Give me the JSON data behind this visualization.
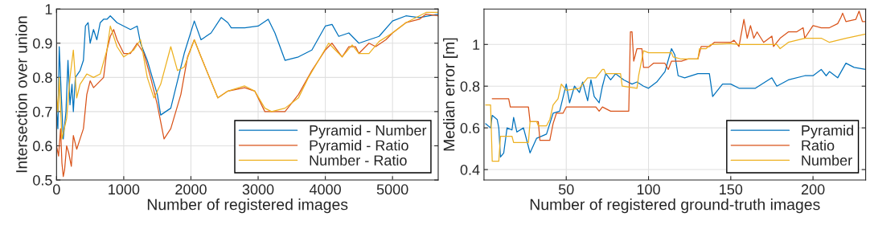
{
  "chart_data": [
    {
      "type": "line",
      "xlabel": "Number of registered images",
      "ylabel": "Intersection over union",
      "xlim": [
        0,
        5680
      ],
      "ylim": [
        0.5,
        1
      ],
      "xticks": [
        0,
        1000,
        2000,
        3000,
        4000,
        5000
      ],
      "yticks": [
        0.5,
        0.6,
        0.7,
        0.8,
        0.9,
        1
      ],
      "grid": true,
      "legend": "bottom right",
      "series": [
        {
          "name": "Pyramid - Number",
          "color": "#0072bd",
          "x": [
            0,
            20,
            40,
            70,
            100,
            140,
            170,
            200,
            230,
            250,
            280,
            350,
            400,
            430,
            470,
            500,
            550,
            600,
            650,
            700,
            750,
            800,
            850,
            900,
            1000,
            1100,
            1200,
            1250,
            1350,
            1500,
            1550,
            1700,
            1900,
            2050,
            2150,
            2300,
            2450,
            2550,
            2600,
            2800,
            3000,
            3150,
            3250,
            3400,
            3600,
            3800,
            4000,
            4100,
            4200,
            4350,
            4500,
            4650,
            4800,
            5000,
            5200,
            5400,
            5680
          ],
          "values": [
            0.7,
            0.65,
            0.89,
            0.75,
            0.62,
            0.7,
            0.85,
            0.72,
            0.78,
            0.7,
            0.8,
            0.82,
            0.85,
            0.95,
            0.96,
            0.9,
            0.94,
            0.91,
            0.96,
            0.97,
            0.97,
            0.98,
            0.97,
            0.96,
            0.95,
            0.94,
            0.95,
            0.9,
            0.85,
            0.75,
            0.69,
            0.71,
            0.87,
            0.965,
            0.91,
            0.93,
            0.975,
            0.96,
            0.945,
            0.945,
            0.95,
            0.97,
            0.93,
            0.85,
            0.86,
            0.88,
            0.95,
            0.955,
            0.92,
            0.93,
            0.9,
            0.91,
            0.92,
            0.965,
            0.98,
            0.975,
            0.985
          ]
        },
        {
          "name": "Pyramid - Ratio",
          "color": "#d95319",
          "x": [
            0,
            30,
            60,
            80,
            100,
            120,
            150,
            180,
            220,
            250,
            300,
            350,
            400,
            450,
            500,
            550,
            600,
            700,
            750,
            800,
            850,
            900,
            1000,
            1100,
            1200,
            1300,
            1400,
            1500,
            1600,
            1700,
            1850,
            1950,
            2050,
            2150,
            2400,
            2550,
            2800,
            2950,
            3100,
            3300,
            3400,
            3600,
            3800,
            4000,
            4100,
            4250,
            4350,
            4450,
            4500,
            4650,
            4750,
            4900,
            5000,
            5200,
            5400,
            5500,
            5680
          ],
          "values": [
            0.6,
            0.57,
            0.65,
            0.55,
            0.51,
            0.53,
            0.6,
            0.58,
            0.54,
            0.63,
            0.59,
            0.62,
            0.65,
            0.75,
            0.79,
            0.77,
            0.78,
            0.8,
            0.88,
            0.92,
            0.94,
            0.91,
            0.87,
            0.87,
            0.9,
            0.87,
            0.8,
            0.72,
            0.62,
            0.65,
            0.75,
            0.86,
            0.91,
            0.86,
            0.74,
            0.76,
            0.77,
            0.76,
            0.7,
            0.7,
            0.7,
            0.75,
            0.82,
            0.88,
            0.9,
            0.86,
            0.89,
            0.89,
            0.87,
            0.9,
            0.89,
            0.91,
            0.93,
            0.96,
            0.97,
            0.985,
            0.98
          ]
        },
        {
          "name": "Number - Ratio",
          "color": "#edb120",
          "x": [
            0,
            20,
            40,
            80,
            150,
            200,
            250,
            300,
            350,
            450,
            550,
            650,
            750,
            800,
            900,
            1000,
            1150,
            1250,
            1350,
            1450,
            1550,
            1700,
            1800,
            1900,
            2050,
            2150,
            2400,
            2550,
            2800,
            2950,
            3100,
            3200,
            3400,
            3600,
            3750,
            3900,
            4050,
            4250,
            4400,
            4500,
            4650,
            4800,
            5000,
            5200,
            5500,
            5680
          ],
          "values": [
            0.75,
            0.7,
            0.8,
            0.62,
            0.68,
            0.8,
            0.88,
            0.74,
            0.78,
            0.81,
            0.8,
            0.81,
            0.88,
            0.95,
            0.89,
            0.86,
            0.88,
            0.91,
            0.8,
            0.74,
            0.78,
            0.89,
            0.82,
            0.83,
            0.91,
            0.86,
            0.74,
            0.76,
            0.775,
            0.76,
            0.71,
            0.7,
            0.71,
            0.74,
            0.8,
            0.85,
            0.9,
            0.86,
            0.895,
            0.87,
            0.87,
            0.905,
            0.93,
            0.96,
            0.99,
            0.99
          ]
        }
      ]
    },
    {
      "type": "line",
      "xlabel": "Number of registered ground-truth images",
      "ylabel": "Median error [m]",
      "xlim": [
        0,
        232
      ],
      "ylim": [
        0.35,
        1.17
      ],
      "xticks": [
        50,
        100,
        150,
        200
      ],
      "yticks": [
        0.4,
        0.6,
        0.8,
        1
      ],
      "grid": true,
      "legend": "bottom right",
      "series": [
        {
          "name": "Pyramid",
          "color": "#0072bd",
          "x": [
            1,
            4,
            5,
            8,
            9,
            10,
            12,
            14,
            17,
            18,
            20,
            24,
            28,
            32,
            38,
            42,
            46,
            50,
            52,
            55,
            58,
            60,
            63,
            65,
            67,
            70,
            72,
            74,
            77,
            80,
            85,
            90,
            93,
            97,
            100,
            105,
            110,
            114,
            116,
            118,
            122,
            130,
            137,
            139,
            145,
            150,
            155,
            165,
            175,
            178,
            185,
            195,
            200,
            205,
            208,
            210,
            215,
            220,
            225,
            232
          ],
          "values": [
            0.62,
            0.6,
            0.66,
            0.64,
            0.6,
            0.46,
            0.48,
            0.6,
            0.59,
            0.65,
            0.58,
            0.6,
            0.48,
            0.55,
            0.57,
            0.67,
            0.68,
            0.81,
            0.72,
            0.8,
            0.77,
            0.82,
            0.73,
            0.83,
            0.75,
            0.72,
            0.8,
            0.86,
            0.83,
            0.86,
            0.83,
            0.81,
            0.82,
            0.8,
            0.79,
            0.82,
            0.87,
            0.98,
            0.95,
            0.85,
            0.84,
            0.86,
            0.86,
            0.75,
            0.81,
            0.81,
            0.79,
            0.79,
            0.84,
            0.8,
            0.83,
            0.85,
            0.85,
            0.88,
            0.85,
            0.87,
            0.84,
            0.91,
            0.89,
            0.88
          ]
        },
        {
          "name": "Ratio",
          "color": "#d95319",
          "x": [
            5,
            15,
            16,
            27,
            28,
            33,
            34,
            40,
            42,
            44,
            48,
            50,
            68,
            70,
            72,
            77,
            88,
            89,
            90,
            91,
            93,
            96,
            97,
            100,
            103,
            110,
            112,
            114,
            120,
            124,
            130,
            132,
            137,
            140,
            150,
            152,
            155,
            158,
            160,
            162,
            164,
            166,
            170,
            175,
            176,
            180,
            185,
            190,
            194,
            195,
            200,
            205,
            210,
            215,
            217,
            218,
            220,
            226,
            228,
            230,
            232
          ],
          "values": [
            0.74,
            0.74,
            0.7,
            0.7,
            0.63,
            0.63,
            0.54,
            0.54,
            0.62,
            0.67,
            0.67,
            0.7,
            0.7,
            0.68,
            0.7,
            0.68,
            0.68,
            1.06,
            1.06,
            0.92,
            0.98,
            0.98,
            0.89,
            0.89,
            0.91,
            0.91,
            0.88,
            0.92,
            0.92,
            0.93,
            0.93,
            0.99,
            0.99,
            1.01,
            1.01,
            1.02,
            0.99,
            1.12,
            1.03,
            1.09,
            1.03,
            1.06,
            1.01,
            1.04,
            0.99,
            1.03,
            1.06,
            1.06,
            1.08,
            1.03,
            1.09,
            1.08,
            1.08,
            1.1,
            1.13,
            1.15,
            1.11,
            1.12,
            1.16,
            1.11,
            1.11
          ]
        },
        {
          "name": "Number",
          "color": "#edb120",
          "x": [
            1,
            4,
            5,
            9,
            10,
            17,
            18,
            27,
            28,
            32,
            33,
            38,
            40,
            42,
            45,
            47,
            50,
            58,
            63,
            68,
            72,
            73,
            74,
            83,
            84,
            93,
            94,
            96,
            97,
            100,
            105,
            114,
            115,
            120,
            130,
            131,
            135,
            138,
            150,
            155,
            160,
            170,
            178,
            180,
            185,
            195,
            205,
            210,
            220,
            232
          ],
          "values": [
            0.71,
            0.71,
            0.44,
            0.44,
            0.56,
            0.56,
            0.53,
            0.53,
            0.63,
            0.63,
            0.61,
            0.61,
            0.64,
            0.71,
            0.74,
            0.81,
            0.78,
            0.79,
            0.84,
            0.84,
            0.88,
            0.88,
            0.86,
            0.86,
            0.8,
            0.79,
            0.85,
            0.93,
            0.97,
            0.96,
            0.96,
            0.96,
            0.94,
            0.93,
            0.93,
            0.98,
            0.98,
            1.0,
            1.005,
            1.0,
            1.0,
            1.0,
            1.0,
            0.98,
            1.01,
            1.03,
            1.03,
            1.01,
            1.03,
            1.05
          ]
        }
      ]
    }
  ]
}
